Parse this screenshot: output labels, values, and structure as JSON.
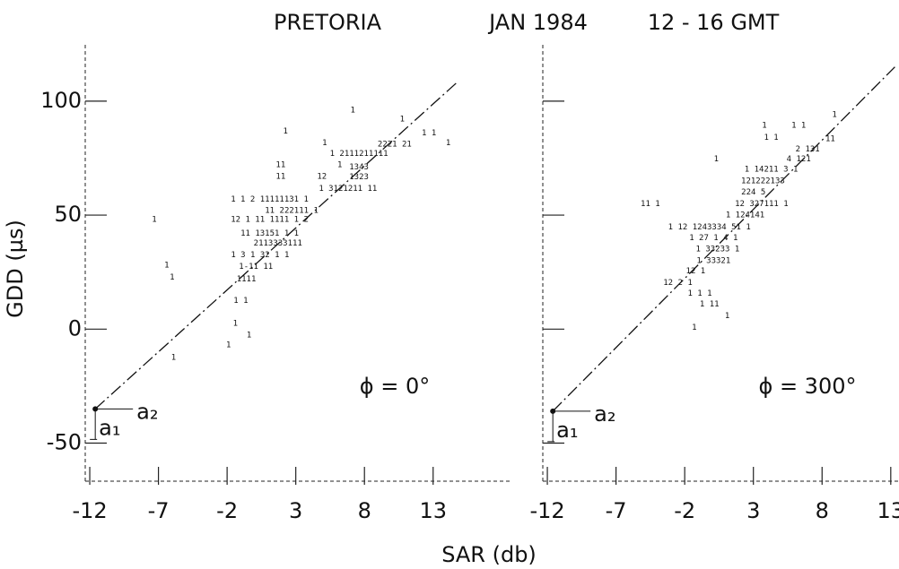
{
  "chart_data": [
    {
      "type": "scatter",
      "title_left": "PRETORIA",
      "title_mid": "JAN  1984",
      "title_right": "12 - 16 GMT",
      "ylabel": "GDD (µs)",
      "xlabel": "SAR (db)",
      "annotation": "ϕ = 0°",
      "a1": "a₁",
      "a2": "a₂",
      "xlim": [
        -12.33,
        18.7
      ],
      "ylim": [
        -66.7,
        124.7
      ],
      "xticks": [
        -12,
        -7,
        -2,
        3,
        8,
        13
      ],
      "yticks": [
        -50,
        0,
        50,
        100
      ],
      "show_ytick_labels": true,
      "x": [
        2.25,
        7.15,
        10.75,
        10.2,
        12.7,
        14.1,
        5.1,
        7.6,
        1.9,
        6.2,
        7.6,
        1.9,
        4.9,
        7.6,
        6.8,
        1.1,
        2.7,
        -7.3,
        1.1,
        1.1,
        1.7,
        0.4,
        -6.4,
        -6.0,
        0.1,
        -0.6,
        -1.0,
        -1.4,
        -0.4,
        -1.9,
        -5.9
      ],
      "values": [
        86.7,
        96,
        92,
        81,
        86,
        81.6,
        81.6,
        77,
        72,
        72,
        71,
        67,
        67,
        66.7,
        61.6,
        57,
        52,
        48,
        48,
        42,
        37.6,
        32.5,
        28,
        22.7,
        27.5,
        22,
        12.5,
        2.4,
        -2.7,
        -7,
        -12.5
      ],
      "labels": [
        "1",
        "1",
        "1",
        "2221  21",
        "1  1",
        "1",
        "1",
        "1  2111211111",
        "11",
        "1",
        "1343",
        "11",
        "12",
        "1323",
        "1  3121211  11",
        "1   1   2   11111131  1",
        "11   222111  1",
        "1",
        "12  1  11  1111  1  2",
        "11  13151  1   1",
        "2113333111",
        "1  3   1  32  1    1",
        "1",
        "1",
        "1-11  11",
        "1111",
        "1  1",
        "1",
        "1",
        "1",
        "1"
      ],
      "fit_x": [
        -11.6,
        14.7
      ],
      "fit_values": [
        -35,
        108
      ]
    },
    {
      "type": "scatter",
      "annotation": "ϕ = 300°",
      "a1": "a₁",
      "a2": "a₂",
      "xlim": [
        -12.33,
        13.6
      ],
      "ylim": [
        -66.7,
        124.7
      ],
      "xticks": [
        -12,
        -7,
        -2,
        3,
        8,
        13
      ],
      "yticks": [
        -50,
        0,
        50,
        100
      ],
      "show_ytick_labels": false,
      "x": [
        3.8,
        6.3,
        8.9,
        4.3,
        6.95,
        8.6,
        6.3,
        0.3,
        4.3,
        3.7,
        3.0,
        -4.5,
        3.6,
        2.4,
        -0.2,
        0.1,
        0.4,
        0.1,
        -1.2,
        -2.5,
        -0.9,
        -0.2,
        1.1,
        -1.3
      ],
      "values": [
        89.4,
        89.4,
        94,
        84,
        79,
        83.5,
        74.5,
        74.5,
        70,
        65,
        60,
        55,
        55,
        50,
        44.7,
        40,
        35,
        30,
        25.5,
        20.4,
        15.7,
        11,
        5.9,
        0.8
      ],
      "labels": [
        "1",
        "1  1",
        "1",
        "1   1",
        "2 131",
        "11",
        "4 121",
        "1",
        "1  14211   3   1",
        "121222133",
        "224 5",
        "11   1",
        "12  327111    1",
        "1  124141",
        "1  12  1243334 51  1",
        "1  27 1  4  1",
        "1  33233     1",
        "1  33321",
        "12  1",
        "12  2  1",
        "1   1  1",
        "1  11",
        "1",
        "1"
      ],
      "fit_x": [
        -11.6,
        13.3
      ],
      "fit_values": [
        -36,
        115
      ]
    }
  ]
}
